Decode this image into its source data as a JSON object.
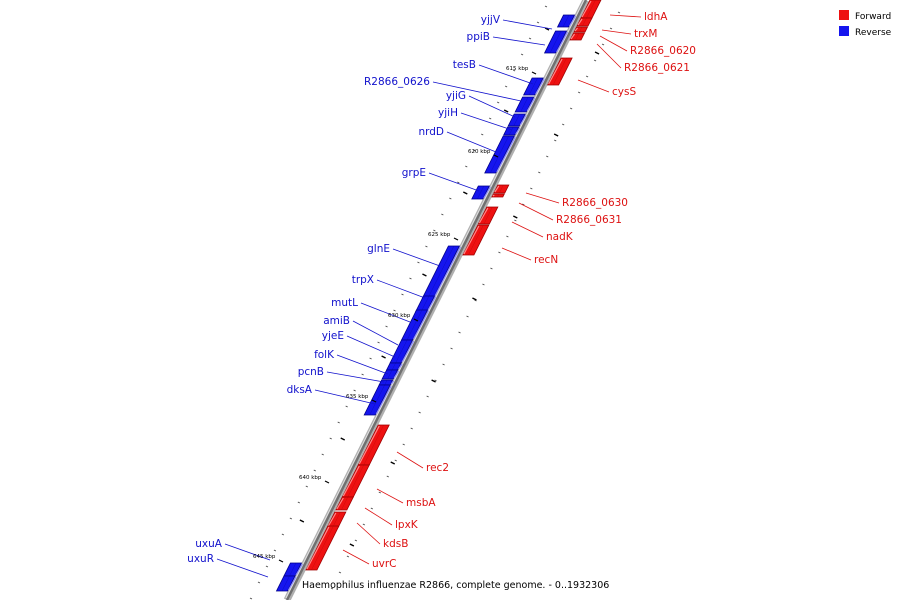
{
  "caption": "Haemophilus influenzae R2866, complete genome. - 0..1932306",
  "legend": [
    {
      "label": "Forward",
      "color": "#ee1111"
    },
    {
      "label": "Reverse",
      "color": "#1515ee"
    }
  ],
  "colors": {
    "forward": "#ee1111",
    "reverse": "#1515ee",
    "backbone": "#8a8a8a"
  },
  "scale_marks": [
    "615 kbp",
    "620 kbp",
    "625 kbp",
    "630 kbp",
    "635 kbp",
    "640 kbp",
    "645 kbp"
  ],
  "genes": [
    {
      "name": "ldhA",
      "strand": "forward"
    },
    {
      "name": "trxM",
      "strand": "forward"
    },
    {
      "name": "R2866_0620",
      "strand": "forward"
    },
    {
      "name": "R2866_0621",
      "strand": "forward"
    },
    {
      "name": "cysS",
      "strand": "forward"
    },
    {
      "name": "yjjV",
      "strand": "reverse"
    },
    {
      "name": "ppiB",
      "strand": "reverse"
    },
    {
      "name": "tesB",
      "strand": "reverse"
    },
    {
      "name": "R2866_0626",
      "strand": "reverse"
    },
    {
      "name": "yjiG",
      "strand": "reverse"
    },
    {
      "name": "yjiH",
      "strand": "reverse"
    },
    {
      "name": "nrdD",
      "strand": "reverse"
    },
    {
      "name": "grpE",
      "strand": "reverse"
    },
    {
      "name": "R2866_0630",
      "strand": "forward"
    },
    {
      "name": "R2866_0631",
      "strand": "forward"
    },
    {
      "name": "nadK",
      "strand": "forward"
    },
    {
      "name": "recN",
      "strand": "forward"
    },
    {
      "name": "glnE",
      "strand": "reverse"
    },
    {
      "name": "trpX",
      "strand": "reverse"
    },
    {
      "name": "mutL",
      "strand": "reverse"
    },
    {
      "name": "amiB",
      "strand": "reverse"
    },
    {
      "name": "yjeE",
      "strand": "reverse"
    },
    {
      "name": "folK",
      "strand": "reverse"
    },
    {
      "name": "pcnB",
      "strand": "reverse"
    },
    {
      "name": "dksA",
      "strand": "reverse"
    },
    {
      "name": "rec2",
      "strand": "forward"
    },
    {
      "name": "msbA",
      "strand": "forward"
    },
    {
      "name": "lpxK",
      "strand": "forward"
    },
    {
      "name": "kdsB",
      "strand": "forward"
    },
    {
      "name": "uvrC",
      "strand": "forward"
    },
    {
      "name": "uxuA",
      "strand": "reverse"
    },
    {
      "name": "uxuR",
      "strand": "reverse"
    }
  ]
}
